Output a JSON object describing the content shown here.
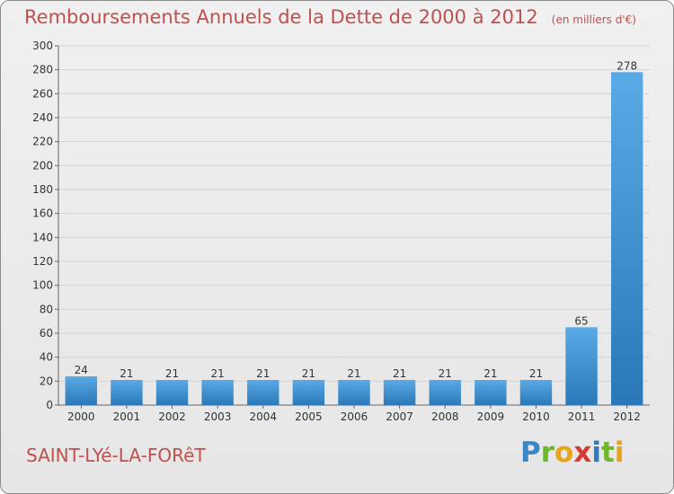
{
  "title": "Remboursements Annuels de la Dette de 2000 à 2012",
  "subtitle": "(en milliers d'€)",
  "commune": "SAINT-LYé-LA-FORêT",
  "logo": {
    "text": "Proxiti",
    "letters": [
      "P",
      "r",
      "o",
      "x",
      "i",
      "t",
      "i"
    ]
  },
  "colors": {
    "title": "#c0504d",
    "bar_light": "#5aaae6",
    "bar_dark": "#2a78b8",
    "grid": "#d3d3d3"
  },
  "chart_data": {
    "type": "bar",
    "categories": [
      "2000",
      "2001",
      "2002",
      "2003",
      "2004",
      "2005",
      "2006",
      "2007",
      "2008",
      "2009",
      "2010",
      "2011",
      "2012"
    ],
    "values": [
      24,
      21,
      21,
      21,
      21,
      21,
      21,
      21,
      21,
      21,
      21,
      65,
      278
    ],
    "value_labels": [
      "24",
      "21",
      "21",
      "21",
      "21",
      "21",
      "21",
      "21",
      "21",
      "21",
      "21",
      "65",
      "278"
    ],
    "ylim": [
      0,
      300
    ],
    "yticks": [
      0,
      20,
      40,
      60,
      80,
      100,
      120,
      140,
      160,
      180,
      200,
      220,
      240,
      260,
      280,
      300
    ],
    "ytick_labels": [
      "0",
      "20",
      "40",
      "60",
      "80",
      "100",
      "120",
      "140",
      "160",
      "180",
      "200",
      "220",
      "240",
      "260",
      "280",
      "300"
    ],
    "grid": true,
    "legend": "none",
    "xlabel": "",
    "ylabel": ""
  }
}
